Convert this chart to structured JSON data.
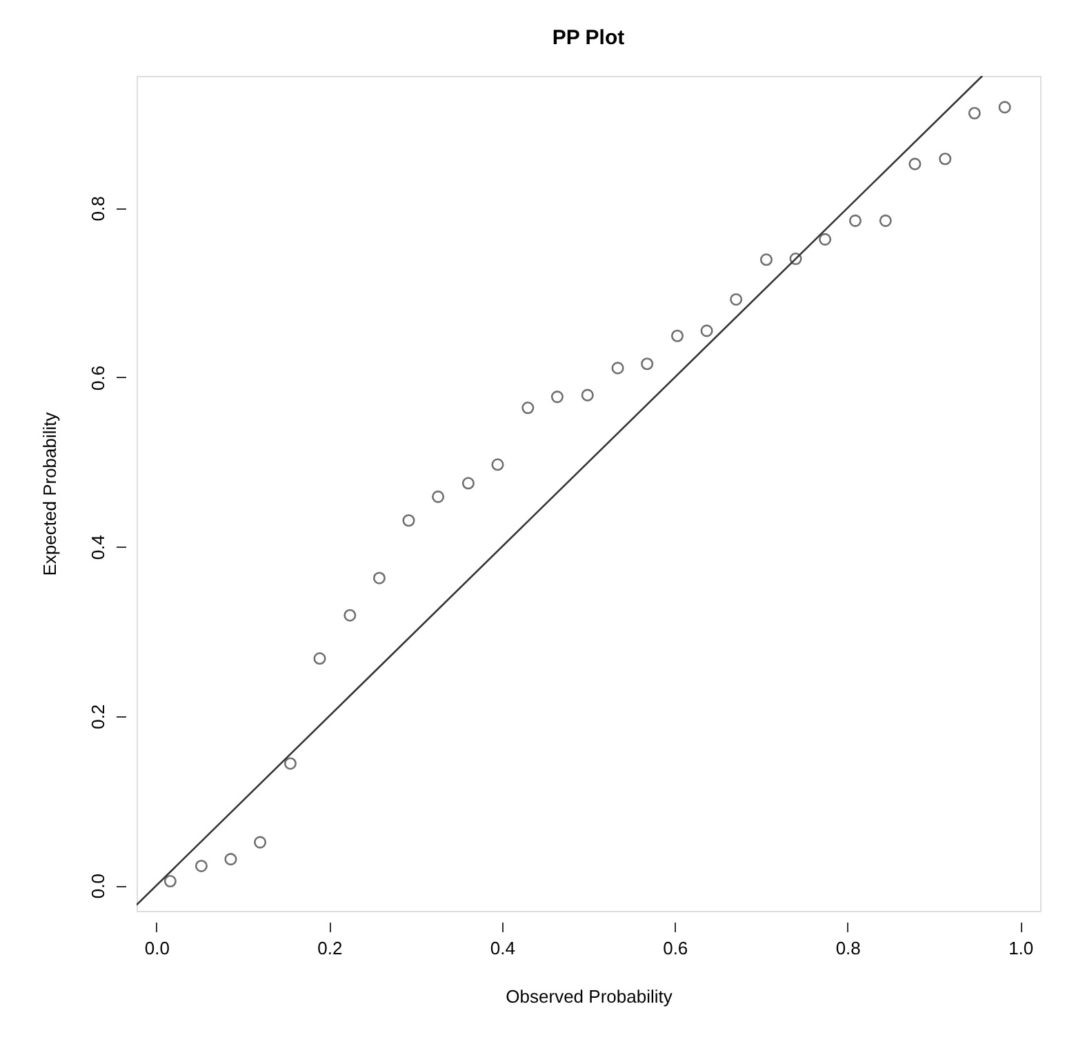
{
  "chart_data": {
    "type": "scatter",
    "title": "PP Plot",
    "xlabel": "Observed Probability",
    "ylabel": "Expected Probability",
    "xlim": [
      -0.023,
      1.023
    ],
    "ylim": [
      -0.03,
      0.956
    ],
    "xticks": [
      {
        "value": 0,
        "label": "0.0"
      },
      0.2,
      0.4,
      0.6,
      0.8,
      {
        "value": 1,
        "label": "1.0"
      }
    ],
    "yticks": [
      {
        "value": 0,
        "label": "0.0"
      },
      0.2,
      0.4,
      0.6,
      0.8
    ],
    "grid": false,
    "series": [
      {
        "color": "#333333",
        "marker": "circle",
        "x": [
          0.016,
          0.052,
          0.086,
          0.12,
          0.155,
          0.189,
          0.224,
          0.258,
          0.292,
          0.326,
          0.361,
          0.395,
          0.43,
          0.464,
          0.499,
          0.534,
          0.568,
          0.603,
          0.637,
          0.671,
          0.706,
          0.74,
          0.774,
          0.809,
          0.844,
          0.878,
          0.913,
          0.947,
          0.982
        ],
        "values": [
          0.005,
          0.023,
          0.031,
          0.051,
          0.144,
          0.268,
          0.319,
          0.363,
          0.431,
          0.459,
          0.475,
          0.497,
          0.564,
          0.577,
          0.579,
          0.611,
          0.616,
          0.649,
          0.655,
          0.692,
          0.739,
          0.74,
          0.763,
          0.785,
          0.785,
          0.852,
          0.858,
          0.912,
          0.919
        ]
      },
      {
        "type": "line",
        "color": "#333333",
        "line_style": "solid",
        "x": [
          -0.023,
          0.956
        ],
        "values": [
          -0.023,
          0.956
        ]
      }
    ]
  }
}
